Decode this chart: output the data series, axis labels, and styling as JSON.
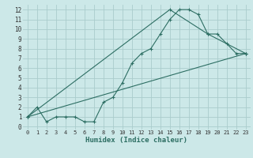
{
  "xlabel": "Humidex (Indice chaleur)",
  "bg_color": "#cce8e8",
  "grid_color": "#aacccc",
  "line_color": "#2d6e63",
  "xlim": [
    -0.5,
    23.5
  ],
  "ylim": [
    -0.3,
    12.5
  ],
  "xticks": [
    0,
    1,
    2,
    3,
    4,
    5,
    6,
    7,
    8,
    9,
    10,
    11,
    12,
    13,
    14,
    15,
    16,
    17,
    18,
    19,
    20,
    21,
    22,
    23
  ],
  "yticks": [
    0,
    1,
    2,
    3,
    4,
    5,
    6,
    7,
    8,
    9,
    10,
    11,
    12
  ],
  "line1_x": [
    0,
    1,
    2,
    3,
    4,
    5,
    6,
    7,
    8,
    9,
    10,
    11,
    12,
    13,
    14,
    15,
    16,
    17,
    18,
    19,
    20,
    21,
    22,
    23
  ],
  "line1_y": [
    1,
    2,
    0.5,
    1,
    1,
    1,
    0.5,
    0.5,
    2.5,
    3,
    4.5,
    6.5,
    7.5,
    8,
    9.5,
    11,
    12,
    12,
    11.5,
    9.5,
    9.5,
    8.5,
    7.5,
    7.5
  ],
  "line2_x": [
    0,
    23
  ],
  "line2_y": [
    1,
    7.5
  ],
  "line3_x": [
    0,
    15,
    19,
    23
  ],
  "line3_y": [
    1,
    12,
    9.5,
    7.5
  ]
}
